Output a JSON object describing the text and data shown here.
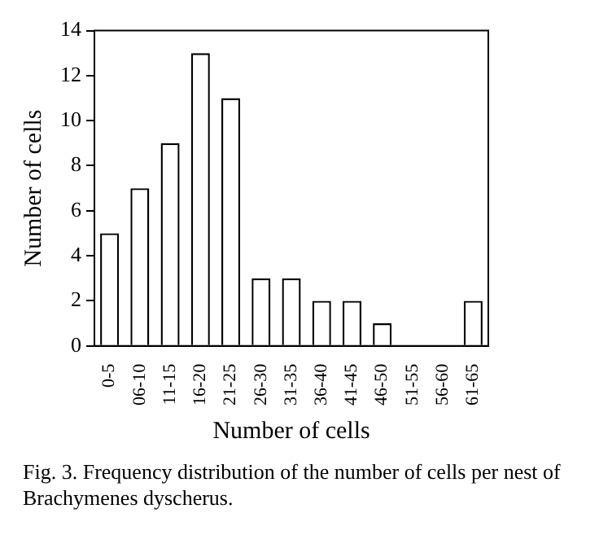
{
  "chart_data": {
    "type": "bar",
    "xlabel": "Number of cells",
    "ylabel": "Number of cells",
    "categories": [
      "0-5",
      "06-10",
      "11-15",
      "16-20",
      "21-25",
      "26-30",
      "31-35",
      "36-40",
      "41-45",
      "46-50",
      "51-55",
      "56-60",
      "61-65"
    ],
    "values": [
      5,
      7,
      9,
      13,
      11,
      3,
      3,
      2,
      2,
      1,
      0,
      0,
      2
    ],
    "color": "#ffffff",
    "ylim": [
      0,
      14
    ],
    "yticks": [
      0,
      2,
      4,
      6,
      8,
      10,
      12,
      14
    ],
    "grid": false,
    "legend": false,
    "annotations": [
      "Fig. 3. Frequency distribution of the number of cells per nest of Brachymenes dyscherus."
    ]
  }
}
